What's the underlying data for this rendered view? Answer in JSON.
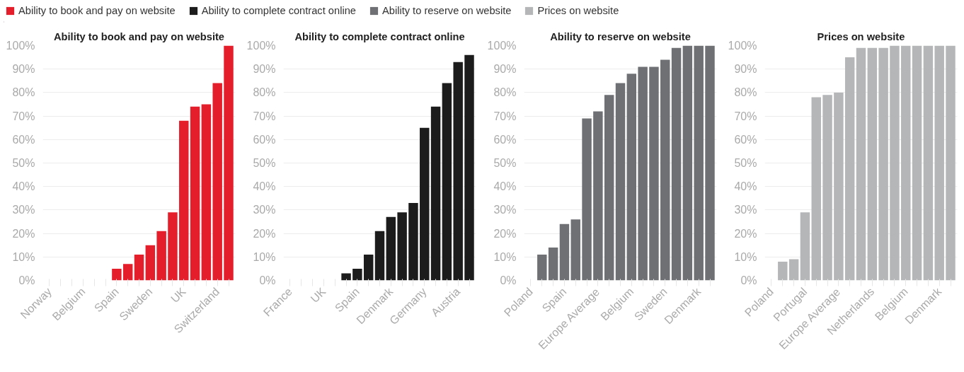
{
  "chart_data": [
    {
      "type": "bar",
      "title": "Ability to book and pay on website",
      "categories": [
        "Norway",
        null,
        null,
        "Belgium",
        null,
        null,
        "Spain",
        null,
        null,
        "Sweden",
        null,
        null,
        "UK",
        null,
        null,
        "Switzerland",
        null
      ],
      "series": [
        {
          "name": "Ability to book and pay on website",
          "color": "#e41e2b",
          "values": [
            0,
            0,
            0,
            0,
            0,
            0,
            5,
            7,
            11,
            15,
            21,
            29,
            68,
            74,
            75,
            84,
            100
          ]
        }
      ],
      "ylim": [
        0,
        100
      ],
      "yticks": [
        {
          "value": 0,
          "label": "0%"
        },
        {
          "value": 10,
          "label": "10%"
        },
        {
          "value": 20,
          "label": "20%"
        },
        {
          "value": 30,
          "label": "30%"
        },
        {
          "value": 40,
          "label": "40%"
        },
        {
          "value": 50,
          "label": "50%"
        },
        {
          "value": 60,
          "label": "60%"
        },
        {
          "value": 70,
          "label": "70%"
        },
        {
          "value": 80,
          "label": "80%"
        },
        {
          "value": 90,
          "label": "90%"
        },
        {
          "value": 100,
          "label": "100%"
        }
      ],
      "grid": "y",
      "legend": "top"
    },
    {
      "type": "bar",
      "title": "Ability to complete contract online",
      "categories": [
        "France",
        null,
        null,
        "UK",
        null,
        null,
        "Spain",
        null,
        null,
        "Denmark",
        null,
        null,
        "Germany",
        null,
        null,
        "Austria",
        null
      ],
      "series": [
        {
          "name": "Ability to complete contract online",
          "color": "#1c1c1c",
          "values": [
            0,
            0,
            0,
            0,
            0,
            3,
            5,
            11,
            21,
            27,
            29,
            33,
            65,
            74,
            84,
            93,
            96
          ]
        }
      ],
      "ylim": [
        0,
        100
      ],
      "yticks": [
        {
          "value": 0,
          "label": "0%"
        },
        {
          "value": 10,
          "label": "10%"
        },
        {
          "value": 20,
          "label": "20%"
        },
        {
          "value": 30,
          "label": "30%"
        },
        {
          "value": 40,
          "label": "40%"
        },
        {
          "value": 50,
          "label": "50%"
        },
        {
          "value": 60,
          "label": "60%"
        },
        {
          "value": 70,
          "label": "70%"
        },
        {
          "value": 80,
          "label": "80%"
        },
        {
          "value": 90,
          "label": "90%"
        },
        {
          "value": 100,
          "label": "100%"
        }
      ],
      "grid": "y",
      "legend": "top"
    },
    {
      "type": "bar",
      "title": "Ability to reserve on website",
      "categories": [
        "Poland",
        null,
        null,
        "Spain",
        null,
        null,
        "Europe Average",
        null,
        null,
        "Belgium",
        null,
        null,
        "Sweden",
        null,
        null,
        "Denmark",
        null
      ],
      "series": [
        {
          "name": "Ability to reserve on website",
          "color": "#6f7074",
          "values": [
            0,
            11,
            14,
            24,
            26,
            69,
            72,
            79,
            84,
            88,
            91,
            91,
            94,
            99,
            100,
            100,
            100
          ]
        }
      ],
      "ylim": [
        0,
        100
      ],
      "yticks": [
        {
          "value": 0,
          "label": "0%"
        },
        {
          "value": 10,
          "label": "10%"
        },
        {
          "value": 20,
          "label": "20%"
        },
        {
          "value": 30,
          "label": "30%"
        },
        {
          "value": 40,
          "label": "40%"
        },
        {
          "value": 50,
          "label": "50%"
        },
        {
          "value": 60,
          "label": "60%"
        },
        {
          "value": 70,
          "label": "70%"
        },
        {
          "value": 80,
          "label": "80%"
        },
        {
          "value": 90,
          "label": "90%"
        },
        {
          "value": 100,
          "label": "100%"
        }
      ],
      "grid": "y",
      "legend": "top"
    },
    {
      "type": "bar",
      "title": "Prices on website",
      "categories": [
        "Poland",
        null,
        null,
        "Portugal",
        null,
        null,
        "Europe Average",
        null,
        null,
        "Netherlands",
        null,
        null,
        "Belgium",
        null,
        null,
        "Denmark",
        null
      ],
      "series": [
        {
          "name": "Prices on website",
          "color": "#b5b6b8",
          "values": [
            0,
            8,
            9,
            29,
            78,
            79,
            80,
            95,
            99,
            99,
            99,
            100,
            100,
            100,
            100,
            100,
            100
          ]
        }
      ],
      "ylim": [
        0,
        100
      ],
      "yticks": [
        {
          "value": 0,
          "label": "0%"
        },
        {
          "value": 10,
          "label": "10%"
        },
        {
          "value": 20,
          "label": "20%"
        },
        {
          "value": 30,
          "label": "30%"
        },
        {
          "value": 40,
          "label": "40%"
        },
        {
          "value": 50,
          "label": "50%"
        },
        {
          "value": 60,
          "label": "60%"
        },
        {
          "value": 70,
          "label": "70%"
        },
        {
          "value": 80,
          "label": "80%"
        },
        {
          "value": 90,
          "label": "90%"
        },
        {
          "value": 100,
          "label": "100%"
        }
      ],
      "grid": "y",
      "legend": "top"
    }
  ]
}
